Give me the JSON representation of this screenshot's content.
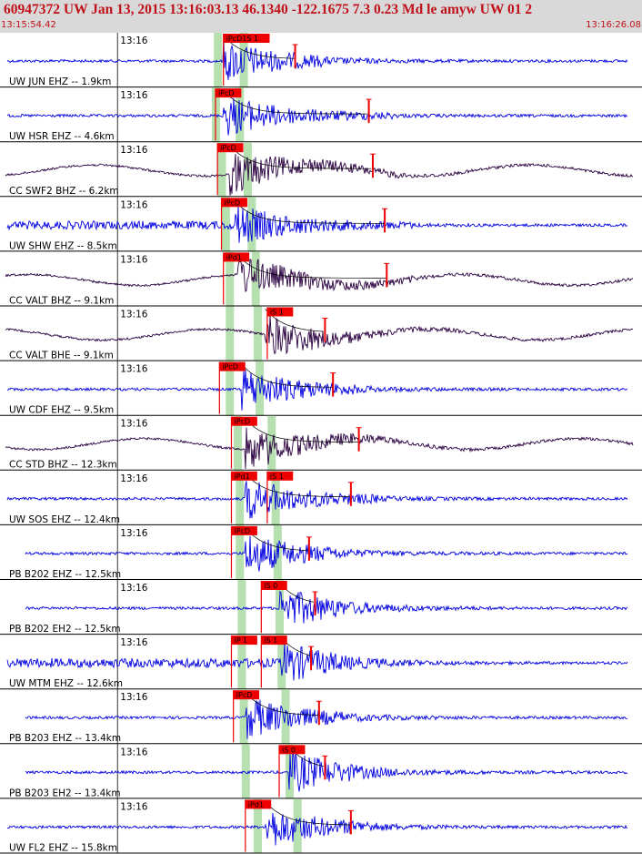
{
  "header": {
    "title": "60947372 UW Jan 13, 2015 13:16:03.13   46.1340 -122.1675  7.3 0.23 Md le amyw UW 01    2",
    "start_time": "13:15:54.42",
    "end_time": "13:16:26.08"
  },
  "colors": {
    "header_bg": "#d9d9d9",
    "header_text": "#c0111a",
    "trace_blue": "#0000e0",
    "trace_dark": "#2a0040",
    "pick_red": "#ee0000",
    "window_green": "#b7e0b0"
  },
  "traces": [
    {
      "tick": "13:16",
      "label": "UW JUN EHZ -- 1.9km",
      "color": "blue",
      "picks": [
        {
          "text": "iPcD1S 1",
          "t": 10.9
        }
      ],
      "windows": [
        10.6,
        11.9
      ],
      "onset": 10.9,
      "coda_end": 14.5
    },
    {
      "tick": "13:16",
      "label": "UW HSR EHZ -- 4.6km",
      "color": "blue",
      "picks": [
        {
          "text": "iPcD",
          "t": 10.5
        }
      ],
      "windows": [
        10.5,
        11.7
      ],
      "onset": 10.9,
      "coda_end": 18.2
    },
    {
      "tick": "13:16",
      "label": "CC SWF2 BHZ -- 6.2km",
      "color": "dark",
      "picks": [
        {
          "text": "iPcD",
          "t": 10.6
        }
      ],
      "windows": [
        10.8,
        12.1
      ],
      "onset": 11.2,
      "coda_end": 18.4
    },
    {
      "tick": "13:16",
      "label": "UW SHW EHZ -- 8.5km",
      "color": "blue",
      "picks": [
        {
          "text": "iPcD",
          "t": 10.8
        }
      ],
      "windows": [
        11.0,
        12.3
      ],
      "onset": 11.4,
      "coda_end": 19.0
    },
    {
      "tick": "13:16",
      "label": "CC VALT BHZ -- 9.1km",
      "color": "dark",
      "picks": [
        {
          "text": "iPd1",
          "t": 10.9
        }
      ],
      "windows": [
        11.2,
        12.5
      ],
      "onset": 11.6,
      "coda_end": 19.1
    },
    {
      "tick": "13:16",
      "label": "CC VALT BHE -- 9.1km",
      "color": "dark",
      "picks": [
        {
          "text": "iS 1",
          "t": 13.1
        }
      ],
      "windows": [
        11.2,
        12.6
      ],
      "onset": 13.0,
      "coda_end": 16.0
    },
    {
      "tick": "13:16",
      "label": "UW CDF EHZ -- 9.5km",
      "color": "blue",
      "picks": [
        {
          "text": "iPcD",
          "t": 10.7
        }
      ],
      "windows": [
        11.2,
        12.7
      ],
      "onset": 11.8,
      "coda_end": 16.4
    },
    {
      "tick": "13:16",
      "label": "CC STD BHZ -- 12.3km",
      "color": "dark",
      "picks": [
        {
          "text": "iPcD",
          "t": 11.3
        }
      ],
      "windows": [
        11.6,
        13.3
      ],
      "onset": 12.0,
      "coda_end": 17.7
    },
    {
      "tick": "13:16",
      "label": "UW SOS EHZ -- 12.4km",
      "color": "blue",
      "picks": [
        {
          "text": "iPd1",
          "t": 11.3
        },
        {
          "text": "iS 1",
          "t": 13.1
        }
      ],
      "windows": [
        11.7,
        13.5
      ],
      "onset": 12.0,
      "coda_end": 17.3
    },
    {
      "tick": "13:16",
      "label": "PB B202 EHZ -- 12.5km",
      "color": "blue",
      "picks": [
        {
          "text": "iPcD",
          "t": 11.3
        }
      ],
      "windows": [
        11.7,
        13.6
      ],
      "onset": 12.0,
      "coda_end": 15.2
    },
    {
      "tick": "13:16",
      "label": "PB B202 EH2 -- 12.5km",
      "color": "blue",
      "picks": [
        {
          "text": "iS 0",
          "t": 12.8
        }
      ],
      "windows": [
        11.8,
        13.7
      ],
      "onset": 13.7,
      "coda_end": 15.5
    },
    {
      "tick": "13:16",
      "label": "UW MTM EHZ -- 12.6km",
      "color": "blue",
      "picks": [
        {
          "text": "iP 1",
          "t": 11.3
        },
        {
          "text": "iS 1",
          "t": 12.8
        }
      ],
      "windows": [
        11.8,
        13.8
      ],
      "onset": 13.8,
      "coda_end": 15.3
    },
    {
      "tick": "13:16",
      "label": "PB B203 EHZ -- 13.4km",
      "color": "blue",
      "picks": [
        {
          "text": "iPcD",
          "t": 11.4
        }
      ],
      "windows": [
        11.9,
        14.0
      ],
      "onset": 12.0,
      "coda_end": 15.7
    },
    {
      "tick": "13:16",
      "label": "PB B203 EH2 -- 13.4km",
      "color": "blue",
      "picks": [
        {
          "text": "iS 0",
          "t": 13.7
        }
      ],
      "windows": [
        12.0,
        14.2
      ],
      "onset": 14.2,
      "coda_end": 16.0
    },
    {
      "tick": "13:16",
      "label": "UW FL2 EHZ -- 15.8km",
      "color": "blue",
      "picks": [
        {
          "text": "iPd1",
          "t": 12.0
        }
      ],
      "windows": [
        12.6,
        14.6
      ],
      "onset": 13.0,
      "coda_end": 17.3
    }
  ]
}
